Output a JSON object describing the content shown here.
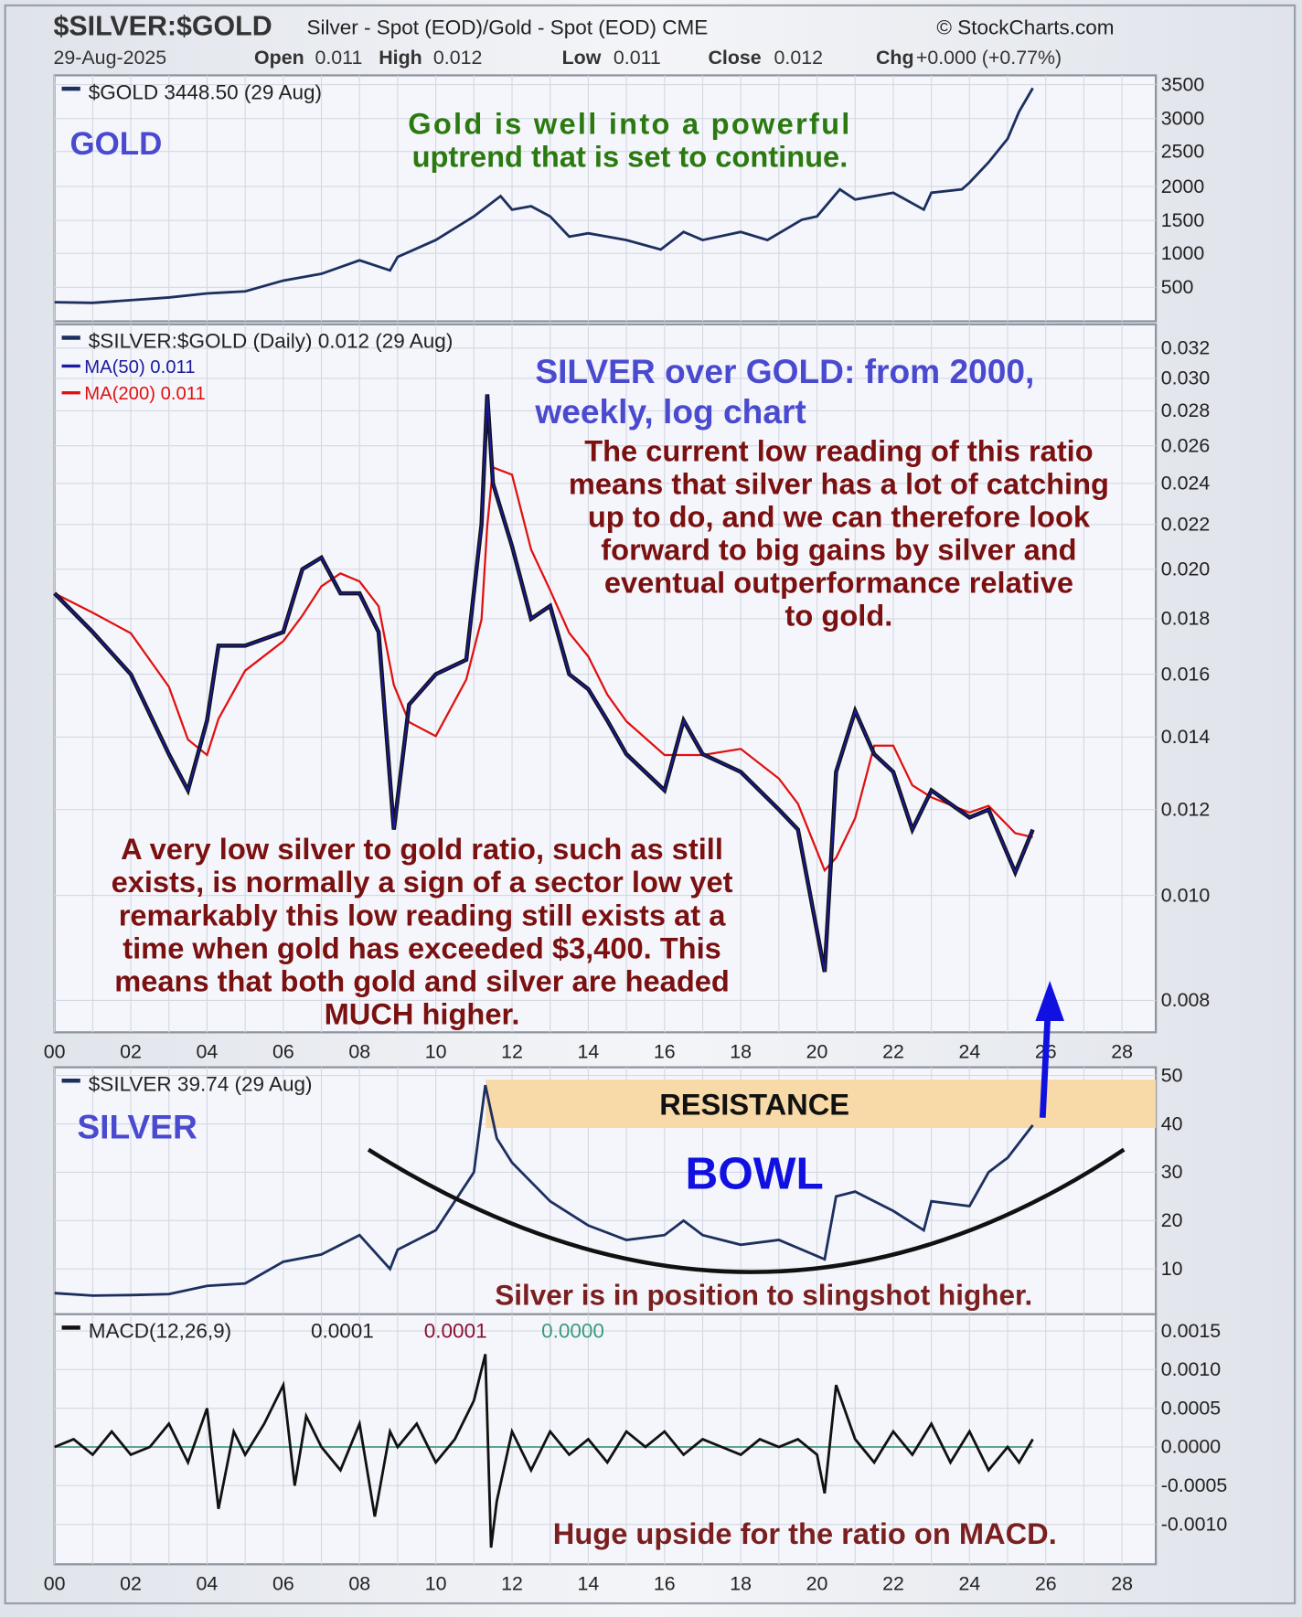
{
  "header": {
    "symbol": "$SILVER:$GOLD",
    "description": "Silver - Spot (EOD)/Gold - Spot (EOD) CME",
    "brand": "© StockCharts.com",
    "date": "29-Aug-2025",
    "open_label": "Open",
    "open": "0.011",
    "high_label": "High",
    "high": "0.012",
    "low_label": "Low",
    "low": "0.011",
    "close_label": "Close",
    "close": "0.012",
    "chg_label": "Chg",
    "chg": "+0.000 (+0.77%)"
  },
  "colors": {
    "price": "#1c2f5e",
    "ma50": "#1a1aa0",
    "ma200": "#e01010",
    "annotation_dark_red": "#7a1010",
    "annotation_blue": "#4a4ad0",
    "annotation_green": "#2a7a10",
    "resistance": "#f8d9a8",
    "arrow": "#1010e0"
  },
  "chart_data": [
    {
      "type": "line",
      "legend": "$GOLD 3448.50 (29 Aug)",
      "label": "GOLD",
      "annotation": [
        "Gold is well into a powerful",
        "uptrend that is set to continue."
      ],
      "yticks": [
        "3500",
        "3000",
        "2500",
        "2000",
        "1500",
        "1000",
        "500"
      ],
      "ylim": [
        300,
        3600
      ],
      "x": [
        0,
        1,
        2,
        3,
        4,
        5,
        6,
        7,
        8,
        8.8,
        9,
        10,
        11,
        11.7,
        12,
        12.5,
        13,
        13.5,
        14,
        15,
        15.9,
        16.5,
        17,
        18,
        18.7,
        19,
        19.6,
        20,
        20.6,
        21,
        22,
        22.8,
        23,
        23.8,
        24,
        24.5,
        25,
        25.3,
        25.66
      ],
      "values": [
        280,
        270,
        310,
        350,
        410,
        440,
        600,
        700,
        900,
        750,
        950,
        1200,
        1550,
        1850,
        1650,
        1700,
        1550,
        1250,
        1300,
        1200,
        1060,
        1320,
        1200,
        1320,
        1200,
        1300,
        1500,
        1550,
        1950,
        1800,
        1900,
        1650,
        1900,
        1950,
        2050,
        2350,
        2700,
        3100,
        3448.5
      ]
    },
    {
      "type": "line",
      "scale": "log",
      "legend": "$SILVER:$GOLD (Daily) 0.012 (29 Aug)",
      "series_labels": [
        {
          "name": "MA(50) 0.011"
        },
        {
          "name": "MA(200) 0.011"
        }
      ],
      "title": [
        "SILVER over GOLD: from 2000,",
        "weekly, log chart"
      ],
      "annotation_right": [
        "The current low reading of this ratio",
        "means that silver has a lot of catching",
        "up to do, and we can therefore look",
        "forward to big gains by silver and",
        "eventual outperformance relative",
        "to gold."
      ],
      "annotation_left": [
        "A very low silver to  gold ratio, such as still",
        "exists, is normally a sign of a sector low yet",
        "remarkably this low reading still exists at a",
        "time when gold has exceeded  $3,400. This",
        "means that both gold and silver are headed",
        "MUCH higher."
      ],
      "yticks": [
        "0.032",
        "0.030",
        "0.028",
        "0.026",
        "0.024",
        "0.022",
        "0.020",
        "0.018",
        "0.016",
        "0.014",
        "0.012",
        "0.010",
        "0.008"
      ],
      "ylim": [
        0.0078,
        0.032
      ],
      "x": [
        0,
        1,
        2,
        3,
        3.5,
        4,
        4.3,
        5,
        6,
        6.5,
        7,
        7.5,
        8,
        8.5,
        8.9,
        9.3,
        10,
        10.8,
        11.2,
        11.35,
        11.5,
        12,
        12.5,
        13,
        13.5,
        14,
        14.5,
        15,
        16,
        16.5,
        17,
        18,
        19,
        19.5,
        20.2,
        20.5,
        21,
        21.5,
        22,
        22.5,
        23,
        24,
        24.5,
        25.2,
        25.66
      ],
      "values": [
        0.019,
        0.0175,
        0.016,
        0.0135,
        0.0125,
        0.0145,
        0.017,
        0.017,
        0.0175,
        0.02,
        0.0205,
        0.019,
        0.019,
        0.0175,
        0.0115,
        0.015,
        0.016,
        0.0165,
        0.022,
        0.029,
        0.024,
        0.021,
        0.018,
        0.0185,
        0.016,
        0.0155,
        0.0145,
        0.0135,
        0.0125,
        0.0145,
        0.0135,
        0.013,
        0.012,
        0.0115,
        0.0085,
        0.013,
        0.0148,
        0.0135,
        0.013,
        0.0115,
        0.0125,
        0.0118,
        0.012,
        0.0105,
        0.0115
      ]
    },
    {
      "type": "line",
      "legend": "$SILVER 39.74 (29 Aug)",
      "label": "SILVER",
      "resistance_label": "RESISTANCE",
      "resistance_range": [
        40,
        50
      ],
      "bowl_label": "BOWL",
      "annotation": "Silver is in position to slingshot higher.",
      "yticks": [
        "50",
        "40",
        "30",
        "20",
        "10"
      ],
      "ylim": [
        3,
        51
      ],
      "x": [
        0,
        1,
        2,
        3,
        4,
        5,
        6,
        7,
        8,
        8.8,
        9,
        10,
        11,
        11.3,
        11.6,
        12,
        13,
        14,
        15,
        16,
        16.5,
        17,
        18,
        19,
        20.2,
        20.5,
        21,
        22,
        22.8,
        23,
        24,
        24.5,
        25,
        25.66
      ],
      "values": [
        5,
        4.5,
        4.6,
        4.8,
        6.5,
        7,
        11.5,
        13,
        17,
        10,
        14,
        18,
        30,
        48,
        37,
        32,
        24,
        19,
        16,
        17,
        20,
        17,
        15,
        16,
        12,
        25,
        26,
        22,
        18,
        24,
        23,
        30,
        33,
        39.74
      ]
    },
    {
      "type": "line",
      "legend": "MACD(12,26,9)",
      "legend_values": [
        "0.0001",
        "0.0001",
        "0.0000"
      ],
      "annotation": "Huge upside for the ratio on MACD.",
      "yticks": [
        "0.0015",
        "0.0010",
        "0.0005",
        "0.0000",
        "-0.0005",
        "-0.0010"
      ],
      "ylim": [
        -0.0012,
        0.0016
      ],
      "x": [
        0,
        0.5,
        1,
        1.5,
        2,
        2.5,
        3,
        3.5,
        4,
        4.3,
        4.7,
        5,
        5.5,
        6,
        6.3,
        6.6,
        7,
        7.5,
        8,
        8.4,
        8.8,
        9,
        9.5,
        10,
        10.5,
        11,
        11.3,
        11.45,
        11.6,
        12,
        12.5,
        13,
        13.5,
        14,
        14.5,
        15,
        15.5,
        16,
        16.5,
        17,
        17.5,
        18,
        18.5,
        19,
        19.5,
        20,
        20.2,
        20.5,
        21,
        21.5,
        22,
        22.5,
        23,
        23.5,
        24,
        24.5,
        25,
        25.3,
        25.66
      ],
      "values": [
        0.0,
        0.0001,
        -0.0001,
        0.0002,
        -0.0001,
        0.0,
        0.0003,
        -0.0002,
        0.0005,
        -0.0008,
        0.0002,
        -0.0001,
        0.0003,
        0.0008,
        -0.0005,
        0.0004,
        0.0,
        -0.0003,
        0.0003,
        -0.0009,
        0.0002,
        0.0,
        0.0003,
        -0.0002,
        0.0001,
        0.0006,
        0.0012,
        -0.0013,
        -0.0007,
        0.0002,
        -0.0003,
        0.0002,
        -0.0001,
        0.0001,
        -0.0002,
        0.0002,
        0.0,
        0.0002,
        -0.0001,
        0.0001,
        0.0,
        -0.0001,
        0.0001,
        0.0,
        0.0001,
        -0.0001,
        -0.0006,
        0.0008,
        0.0001,
        -0.0002,
        0.0002,
        -0.0001,
        0.0003,
        -0.0002,
        0.0002,
        -0.0003,
        0.0,
        -0.0002,
        0.0001
      ]
    }
  ],
  "xaxis": {
    "ticks": [
      "00",
      "02",
      "04",
      "06",
      "08",
      "10",
      "12",
      "14",
      "16",
      "18",
      "20",
      "22",
      "24",
      "26",
      "28"
    ]
  }
}
